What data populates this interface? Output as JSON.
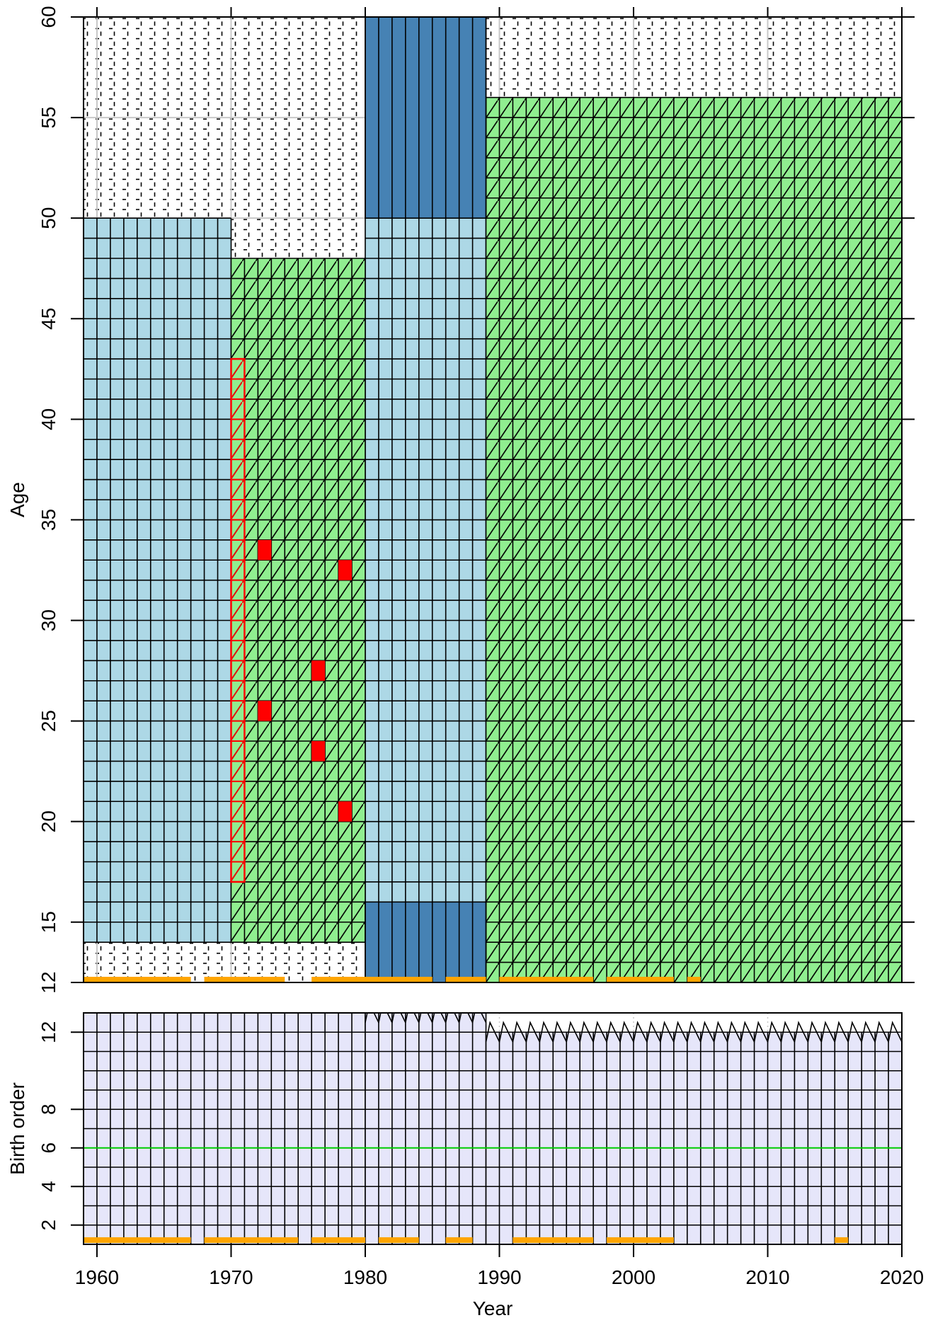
{
  "chart_data": [
    {
      "type": "heatmap",
      "title": "",
      "xlabel": "",
      "ylabel": "Age",
      "xlim": [
        1959,
        2020
      ],
      "ylim": [
        12,
        60
      ],
      "x_ticks": [
        "1960",
        "1970",
        "1980",
        "1990",
        "2000",
        "2010",
        "2020"
      ],
      "y_ticks": [
        "12",
        "15",
        "20",
        "25",
        "30",
        "35",
        "40",
        "45",
        "50",
        "55",
        "60"
      ],
      "grid": true,
      "colors": {
        "available": "#add8e6",
        "modelled": "#90ee90",
        "census": "#4682b4",
        "flagged": "#ff0000",
        "survey_years": "#ffa500"
      },
      "blocks": [
        {
          "category": "available",
          "x": [
            1959,
            1970
          ],
          "y": [
            14,
            50
          ]
        },
        {
          "category": "available",
          "x": [
            1980,
            1989
          ],
          "y": [
            16,
            50
          ]
        },
        {
          "category": "modelled",
          "x": [
            1970,
            1980
          ],
          "y": [
            14,
            48
          ]
        },
        {
          "category": "modelled",
          "x": [
            1989,
            2020
          ],
          "y": [
            12,
            56
          ]
        },
        {
          "category": "census",
          "x": [
            1980,
            1989
          ],
          "y": [
            50,
            60
          ]
        },
        {
          "category": "census",
          "x": [
            1980,
            1989
          ],
          "y": [
            12,
            16
          ]
        },
        {
          "category": "flagged-hatched",
          "x": [
            1970,
            1971
          ],
          "y": [
            17,
            43
          ]
        }
      ],
      "flagged_cells": [
        {
          "year": 1972,
          "age": 33
        },
        {
          "year": 1978,
          "age": 32
        },
        {
          "year": 1976,
          "age": 27
        },
        {
          "year": 1972,
          "age": 25
        },
        {
          "year": 1976,
          "age": 23
        },
        {
          "year": 1978,
          "age": 20
        }
      ],
      "survey_spans": [
        [
          1959,
          1967
        ],
        [
          1968,
          1974
        ],
        [
          1976,
          1985
        ],
        [
          1986,
          1989
        ],
        [
          1990,
          1997
        ],
        [
          1998,
          2003
        ],
        [
          2004,
          2005
        ]
      ]
    },
    {
      "type": "heatmap",
      "title": "",
      "xlabel": "Year",
      "ylabel": "Birth order",
      "xlim": [
        1959,
        2020
      ],
      "ylim": [
        1,
        13
      ],
      "x_ticks": [
        "1960",
        "1970",
        "1980",
        "1990",
        "2000",
        "2010",
        "2020"
      ],
      "y_ticks": [
        "2",
        "4",
        "6",
        "8",
        "12"
      ],
      "grid": true,
      "colors": {
        "cells": "#e6e6fa",
        "reference_line": "#00cc00",
        "survey_years": "#ffa500"
      },
      "max_order_by_period": [
        {
          "x": [
            1959,
            1980
          ],
          "max_order": 13
        },
        {
          "x": [
            1980,
            1989
          ],
          "max_order": 13
        },
        {
          "x": [
            1989,
            2020
          ],
          "max_order": 12
        }
      ],
      "reference_line_y": 6,
      "survey_spans": [
        [
          1959,
          1967
        ],
        [
          1968,
          1975
        ],
        [
          1976,
          1980
        ],
        [
          1981,
          1984
        ],
        [
          1986,
          1988
        ],
        [
          1991,
          1997
        ],
        [
          1998,
          2003
        ],
        [
          2015,
          2016
        ]
      ]
    }
  ]
}
